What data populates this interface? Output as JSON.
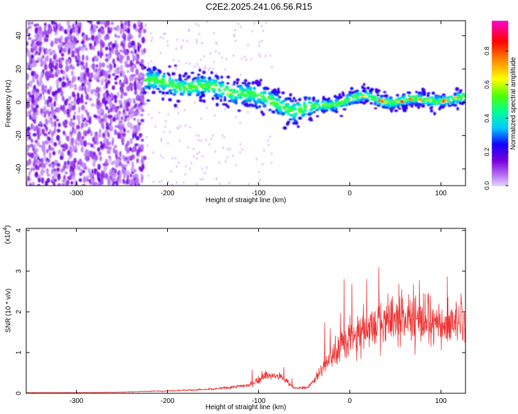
{
  "title": "C2E2.2025.241.06.56.R15",
  "chart_data": [
    {
      "type": "heatmap",
      "xlabel": "Height of straight line (km)",
      "ylabel": "Frequency (Hz)",
      "xlim": [
        -355,
        127
      ],
      "ylim": [
        -50,
        49
      ],
      "x_ticks": [
        -300,
        -200,
        -100,
        0,
        100
      ],
      "y_ticks": [
        -40,
        -20,
        0,
        20,
        40
      ],
      "colorbar": {
        "label": "Normalized spectral amplitude",
        "range": [
          0,
          0.98
        ],
        "ticks": [
          0.0,
          0.2,
          0.4,
          0.6,
          0.8
        ]
      },
      "noise_region_x": [
        -355,
        -225
      ],
      "ridge": {
        "x": [
          -225,
          -210,
          -200,
          -180,
          -160,
          -140,
          -120,
          -100,
          -80,
          -60,
          -45,
          -30,
          -15,
          0,
          20,
          40,
          60,
          80,
          100,
          127
        ],
        "y": [
          13,
          12,
          11,
          10,
          9,
          8,
          6,
          3,
          0,
          -5,
          -4,
          -2,
          0,
          2,
          3,
          1,
          1,
          1,
          2,
          2
        ]
      }
    },
    {
      "type": "line",
      "xlabel": "Height of straight line (km)",
      "ylabel": "SNR (10 * v/v)",
      "y_multiplier": "(x10",
      "y_multiplier_exp": "4",
      "y_multiplier_close": ")",
      "xlim": [
        -355,
        127
      ],
      "ylim": [
        0,
        4.05
      ],
      "x_ticks": [
        -300,
        -200,
        -100,
        0,
        100
      ],
      "y_ticks": [
        0,
        1,
        2,
        3,
        4
      ],
      "color": "#ee3333",
      "envelope": {
        "x": [
          -355,
          -300,
          -250,
          -200,
          -150,
          -110,
          -90,
          -75,
          -60,
          -45,
          -35,
          -25,
          -15,
          0,
          20,
          40,
          60,
          80,
          100,
          127
        ],
        "y": [
          0.02,
          0.02,
          0.03,
          0.06,
          0.1,
          0.2,
          0.45,
          0.4,
          0.12,
          0.15,
          0.5,
          0.9,
          1.2,
          1.6,
          1.9,
          2.1,
          2.2,
          2.1,
          2.0,
          2.0
        ]
      }
    }
  ]
}
